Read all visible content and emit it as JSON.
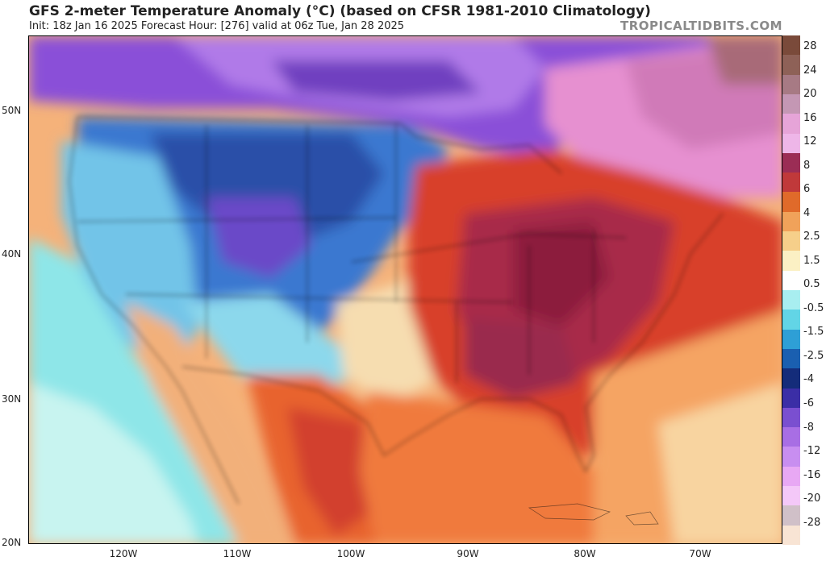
{
  "header": {
    "title": "GFS 2-meter Temperature Anomaly (°C) (based on CFSR 1981-2010 Climatology)",
    "subtitle": "Init: 18z Jan 16 2025   Forecast Hour: [276]   valid at 06z Tue, Jan 28 2025",
    "brand": "TROPICALTIDBITS.COM"
  },
  "axes": {
    "lat_labels": [
      "50N",
      "40N",
      "30N",
      "20N"
    ],
    "lon_labels": [
      "120W",
      "110W",
      "100W",
      "90W",
      "80W",
      "70W"
    ]
  },
  "legend": {
    "labels": [
      "28",
      "24",
      "20",
      "16",
      "12",
      "8",
      "6",
      "4",
      "2.5",
      "1.5",
      "0.5",
      "-0.5",
      "-1.5",
      "-2.5",
      "-4",
      "-6",
      "-8",
      "-12",
      "-16",
      "-20",
      "-28"
    ],
    "colors": [
      "#7a4a3a",
      "#8e6157",
      "#a77a84",
      "#c497b4",
      "#e6a4d8",
      "#eeb6e8",
      "#9b2d55",
      "#c0393a",
      "#e06a2a",
      "#f0a25a",
      "#f6cf8a",
      "#fbf0c4",
      "#ffffff",
      "#a8eef0",
      "#62d5e6",
      "#2e9fd6",
      "#1a5fb0",
      "#142c7a",
      "#3b2ea6",
      "#7a4fd0",
      "#a86ee4",
      "#c88ef0",
      "#e8a8f4",
      "#f4c8f8",
      "#d0c0c8",
      "#f8e4d4"
    ]
  }
}
